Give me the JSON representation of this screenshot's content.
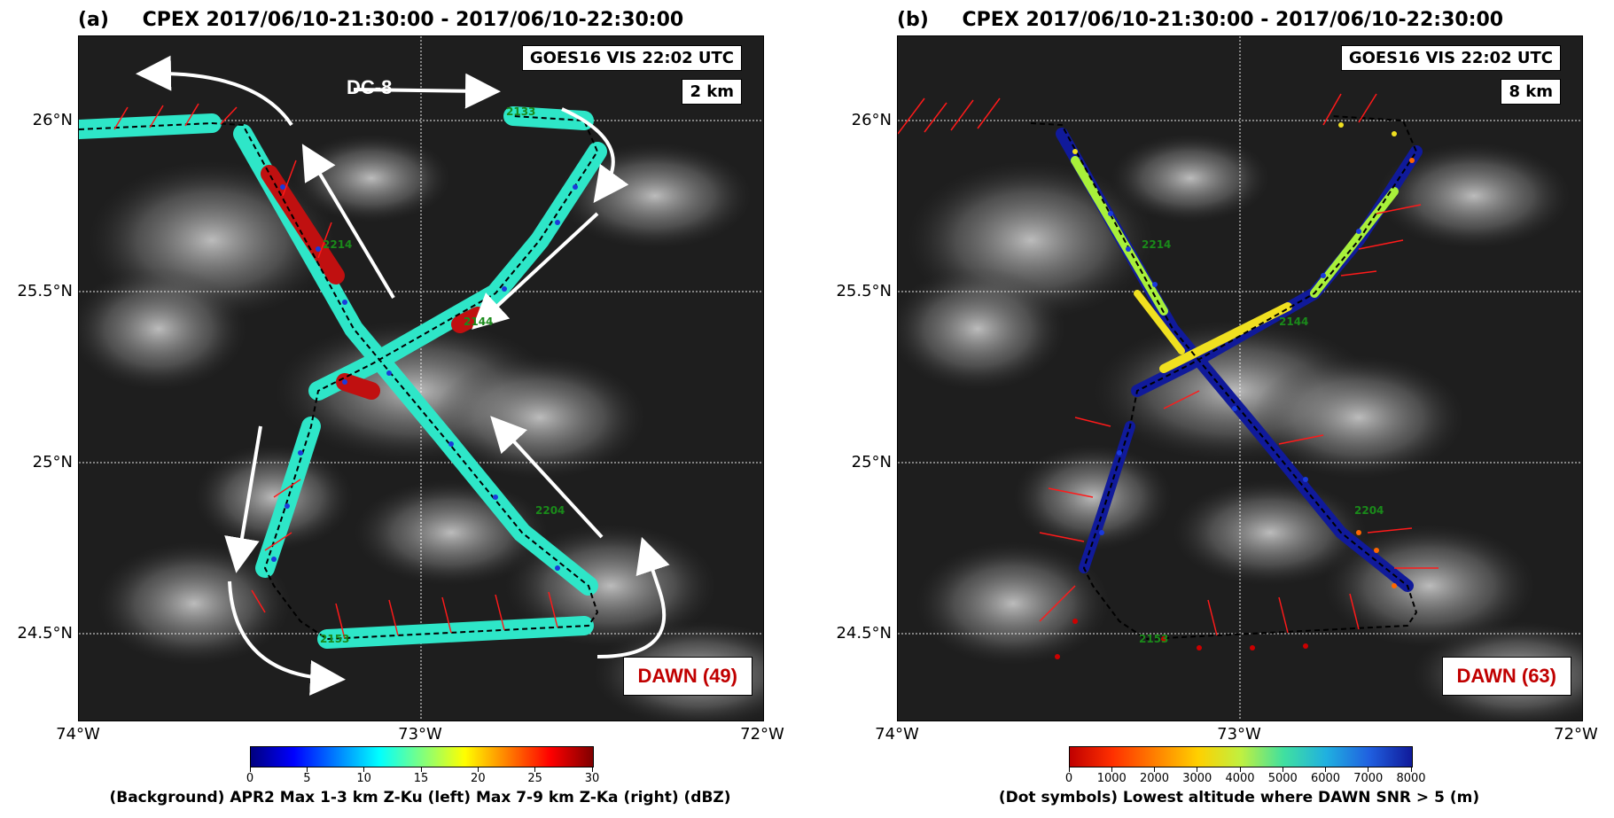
{
  "panels": [
    {
      "id": "a",
      "tag": "(a)",
      "title": "CPEX   2017/06/10-21:30:00 -  2017/06/10-22:30:00",
      "goes_label": "GOES16 VIS 22:02 UTC",
      "altitude_label": "2 km",
      "dawn_label": "DAWN (49)",
      "aircraft_label": "DC-8",
      "time_labels": [
        "2133",
        "2204",
        "2153",
        "2214",
        "2144"
      ],
      "colorbar": {
        "ticks": [
          "0",
          "5",
          "10",
          "15",
          "20",
          "25",
          "30"
        ],
        "label": "(Background) APR2 Max 1-3 km Z-Ku (left) Max 7-9 km Z-Ka (right) (dBZ)"
      }
    },
    {
      "id": "b",
      "tag": "(b)",
      "title": "CPEX   2017/06/10-21:30:00 -  2017/06/10-22:30:00",
      "goes_label": "GOES16 VIS 22:02 UTC",
      "altitude_label": "8 km",
      "dawn_label": "DAWN (63)",
      "time_labels": [
        "2214",
        "2204",
        "2153",
        "2144"
      ],
      "colorbar": {
        "ticks": [
          "0",
          "1000",
          "2000",
          "3000",
          "4000",
          "5000",
          "6000",
          "7000",
          "8000"
        ],
        "label": "(Dot symbols) Lowest altitude where DAWN SNR > 5 (m)"
      }
    }
  ],
  "axes": {
    "lat_labels": [
      "26°N",
      "25.5°N",
      "25°N",
      "24.5°N"
    ],
    "lon_labels": [
      "74°W",
      "73°W",
      "72°W"
    ]
  },
  "colors": {
    "grid": "#ffffff",
    "wind_barb": "#ff1a1a",
    "flight_track": "#000000",
    "arrow": "#ffffff",
    "dawn_text": "#c00000",
    "time_label": "#1a8a1a"
  }
}
